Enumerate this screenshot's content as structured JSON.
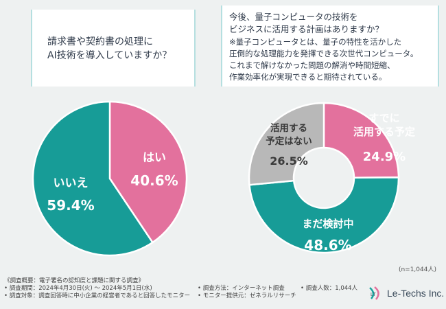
{
  "q1": {
    "line1": "請求書や契約書の処理に",
    "line2": "AI技術を導入していますか？"
  },
  "q2": {
    "line1": "今後、量子コンピュータの技術を",
    "line2": "ビジネスに活用する計画はありますか？",
    "note1": "※量子コンピュータとは、量子の特性を活かした",
    "note2": "圧倒的な処理能力を発揮できる次世代コンピュータ。",
    "note3": "これまで解けなかった問題の解消や時間短縮、",
    "note4": "作業効率化が実現できると期待されている。"
  },
  "colors": {
    "pink": "#e3719d",
    "teal": "#179c97",
    "gray": "#b8b8b8",
    "border": "#b5dfe0"
  },
  "chart_data": [
    {
      "type": "pie",
      "title": "請求書や契約書の処理にAI技術を導入していますか？",
      "categories": [
        "はい",
        "いいえ"
      ],
      "values": [
        40.6,
        59.4
      ],
      "value_labels": [
        "40.6%",
        "59.4%"
      ]
    },
    {
      "type": "pie",
      "donut": true,
      "title": "今後、量子コンピュータの技術をビジネスに活用する計画はありますか？",
      "categories": [
        "すでに活用する予定",
        "まだ検討中",
        "活用する予定はない"
      ],
      "values": [
        24.9,
        48.6,
        26.5
      ],
      "value_labels": [
        "24.9%",
        "48.6%",
        "26.5%"
      ]
    }
  ],
  "labels": {
    "yes": "はい",
    "no": "いいえ",
    "already1": "すでに",
    "already2": "活用する予定",
    "considering": "まだ検討中",
    "noplan1": "活用する",
    "noplan2": "予定はない"
  },
  "n_label": "(n=1,044人)",
  "footer": {
    "overview": "《調査概要：電子署名の認知度と課題に関する調査》",
    "period": "• 調査期間：2024年4月30日(火) ～ 2024年5月1日(水)",
    "method": "• 調査方法：インターネット調査",
    "count": "• 調査人数：1,044人",
    "target": "• 調査対象：調査回答時に中小企業の経営者であると回答したモニター",
    "provider": "• モニター提供元：ゼネラルリサーチ"
  },
  "logo": {
    "text": "Le-Techs Inc.",
    "mark": "LT"
  }
}
